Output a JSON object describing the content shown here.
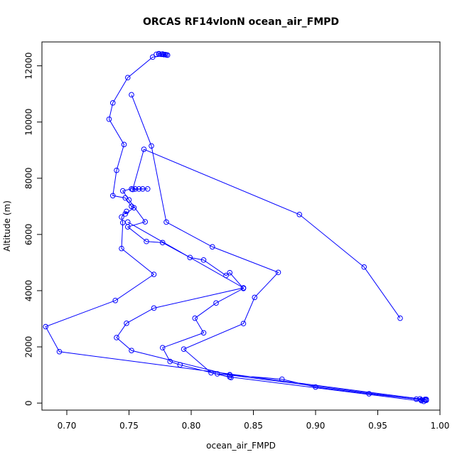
{
  "chart_data": {
    "type": "line",
    "title": "ORCAS RF14vlonN ocean_air_FMPD",
    "xlabel": "ocean_air_FMPD",
    "ylabel": "Altitude (m)",
    "xlim": [
      0.68,
      1.0
    ],
    "ylim": [
      -250,
      12850
    ],
    "x_ticks": [
      0.7,
      0.75,
      0.8,
      0.85,
      0.9,
      0.95,
      1.0
    ],
    "x_tick_labels": [
      "0.70",
      "0.75",
      "0.80",
      "0.85",
      "0.90",
      "0.95",
      "1.00"
    ],
    "y_ticks": [
      0,
      2000,
      4000,
      6000,
      8000,
      10000,
      12000
    ],
    "y_tick_labels": [
      "0",
      "2000",
      "4000",
      "6000",
      "8000",
      "10000",
      "12000"
    ],
    "grid": false,
    "legend": "none",
    "color": "#0000ff",
    "series": [
      {
        "x": [
          0.779,
          0.777,
          0.774,
          0.772,
          0.774,
          0.776,
          0.778,
          0.78,
          0.781,
          0.769,
          0.749,
          0.737,
          0.734,
          0.746,
          0.74,
          0.737,
          0.747,
          0.752,
          0.754,
          0.747,
          0.748,
          0.744,
          0.745,
          0.744,
          0.77,
          0.739,
          0.683,
          0.694,
          0.984,
          0.989,
          0.988,
          0.989,
          0.943,
          0.9,
          0.873,
          0.821,
          0.831,
          0.832,
          0.791,
          0.783,
          0.777,
          0.81,
          0.803,
          0.82,
          0.842,
          0.831,
          0.828,
          0.81,
          0.799,
          0.777,
          0.764,
          0.749,
          0.763,
          0.75,
          0.745,
          0.752,
          0.755,
          0.758,
          0.761,
          0.765,
          0.753,
          0.762,
          0.887,
          0.939,
          0.968
        ],
        "y": [
          12400,
          12420,
          12430,
          12410,
          12420,
          12410,
          12400,
          12390,
          12380,
          12310,
          11580,
          10680,
          10100,
          9200,
          8280,
          7380,
          7300,
          7000,
          6950,
          6730,
          6820,
          6620,
          6420,
          5500,
          4580,
          3650,
          2720,
          1830,
          150,
          130,
          110,
          100,
          330,
          570,
          850,
          1040,
          1010,
          910,
          1360,
          1480,
          1970,
          2500,
          3020,
          3560,
          4080,
          4640,
          4540,
          5090,
          5180,
          5710,
          5750,
          6270,
          6450,
          7230,
          7550,
          7620,
          7620,
          7620,
          7620,
          7620,
          7600,
          9030,
          6710,
          4840,
          3020
        ]
      },
      {
        "x": [
          0.752,
          0.768,
          0.78,
          0.817,
          0.87,
          0.851,
          0.842,
          0.794,
          0.816,
          0.831,
          0.987,
          0.985,
          0.988,
          0.985,
          0.981,
          0.831,
          0.752,
          0.74,
          0.748,
          0.77,
          0.842,
          0.749
        ],
        "y": [
          10970,
          9150,
          6440,
          5560,
          4650,
          3760,
          2830,
          1920,
          1080,
          930,
          60,
          90,
          130,
          110,
          140,
          1000,
          1870,
          2330,
          2840,
          3380,
          4100,
          6440
        ]
      }
    ]
  }
}
